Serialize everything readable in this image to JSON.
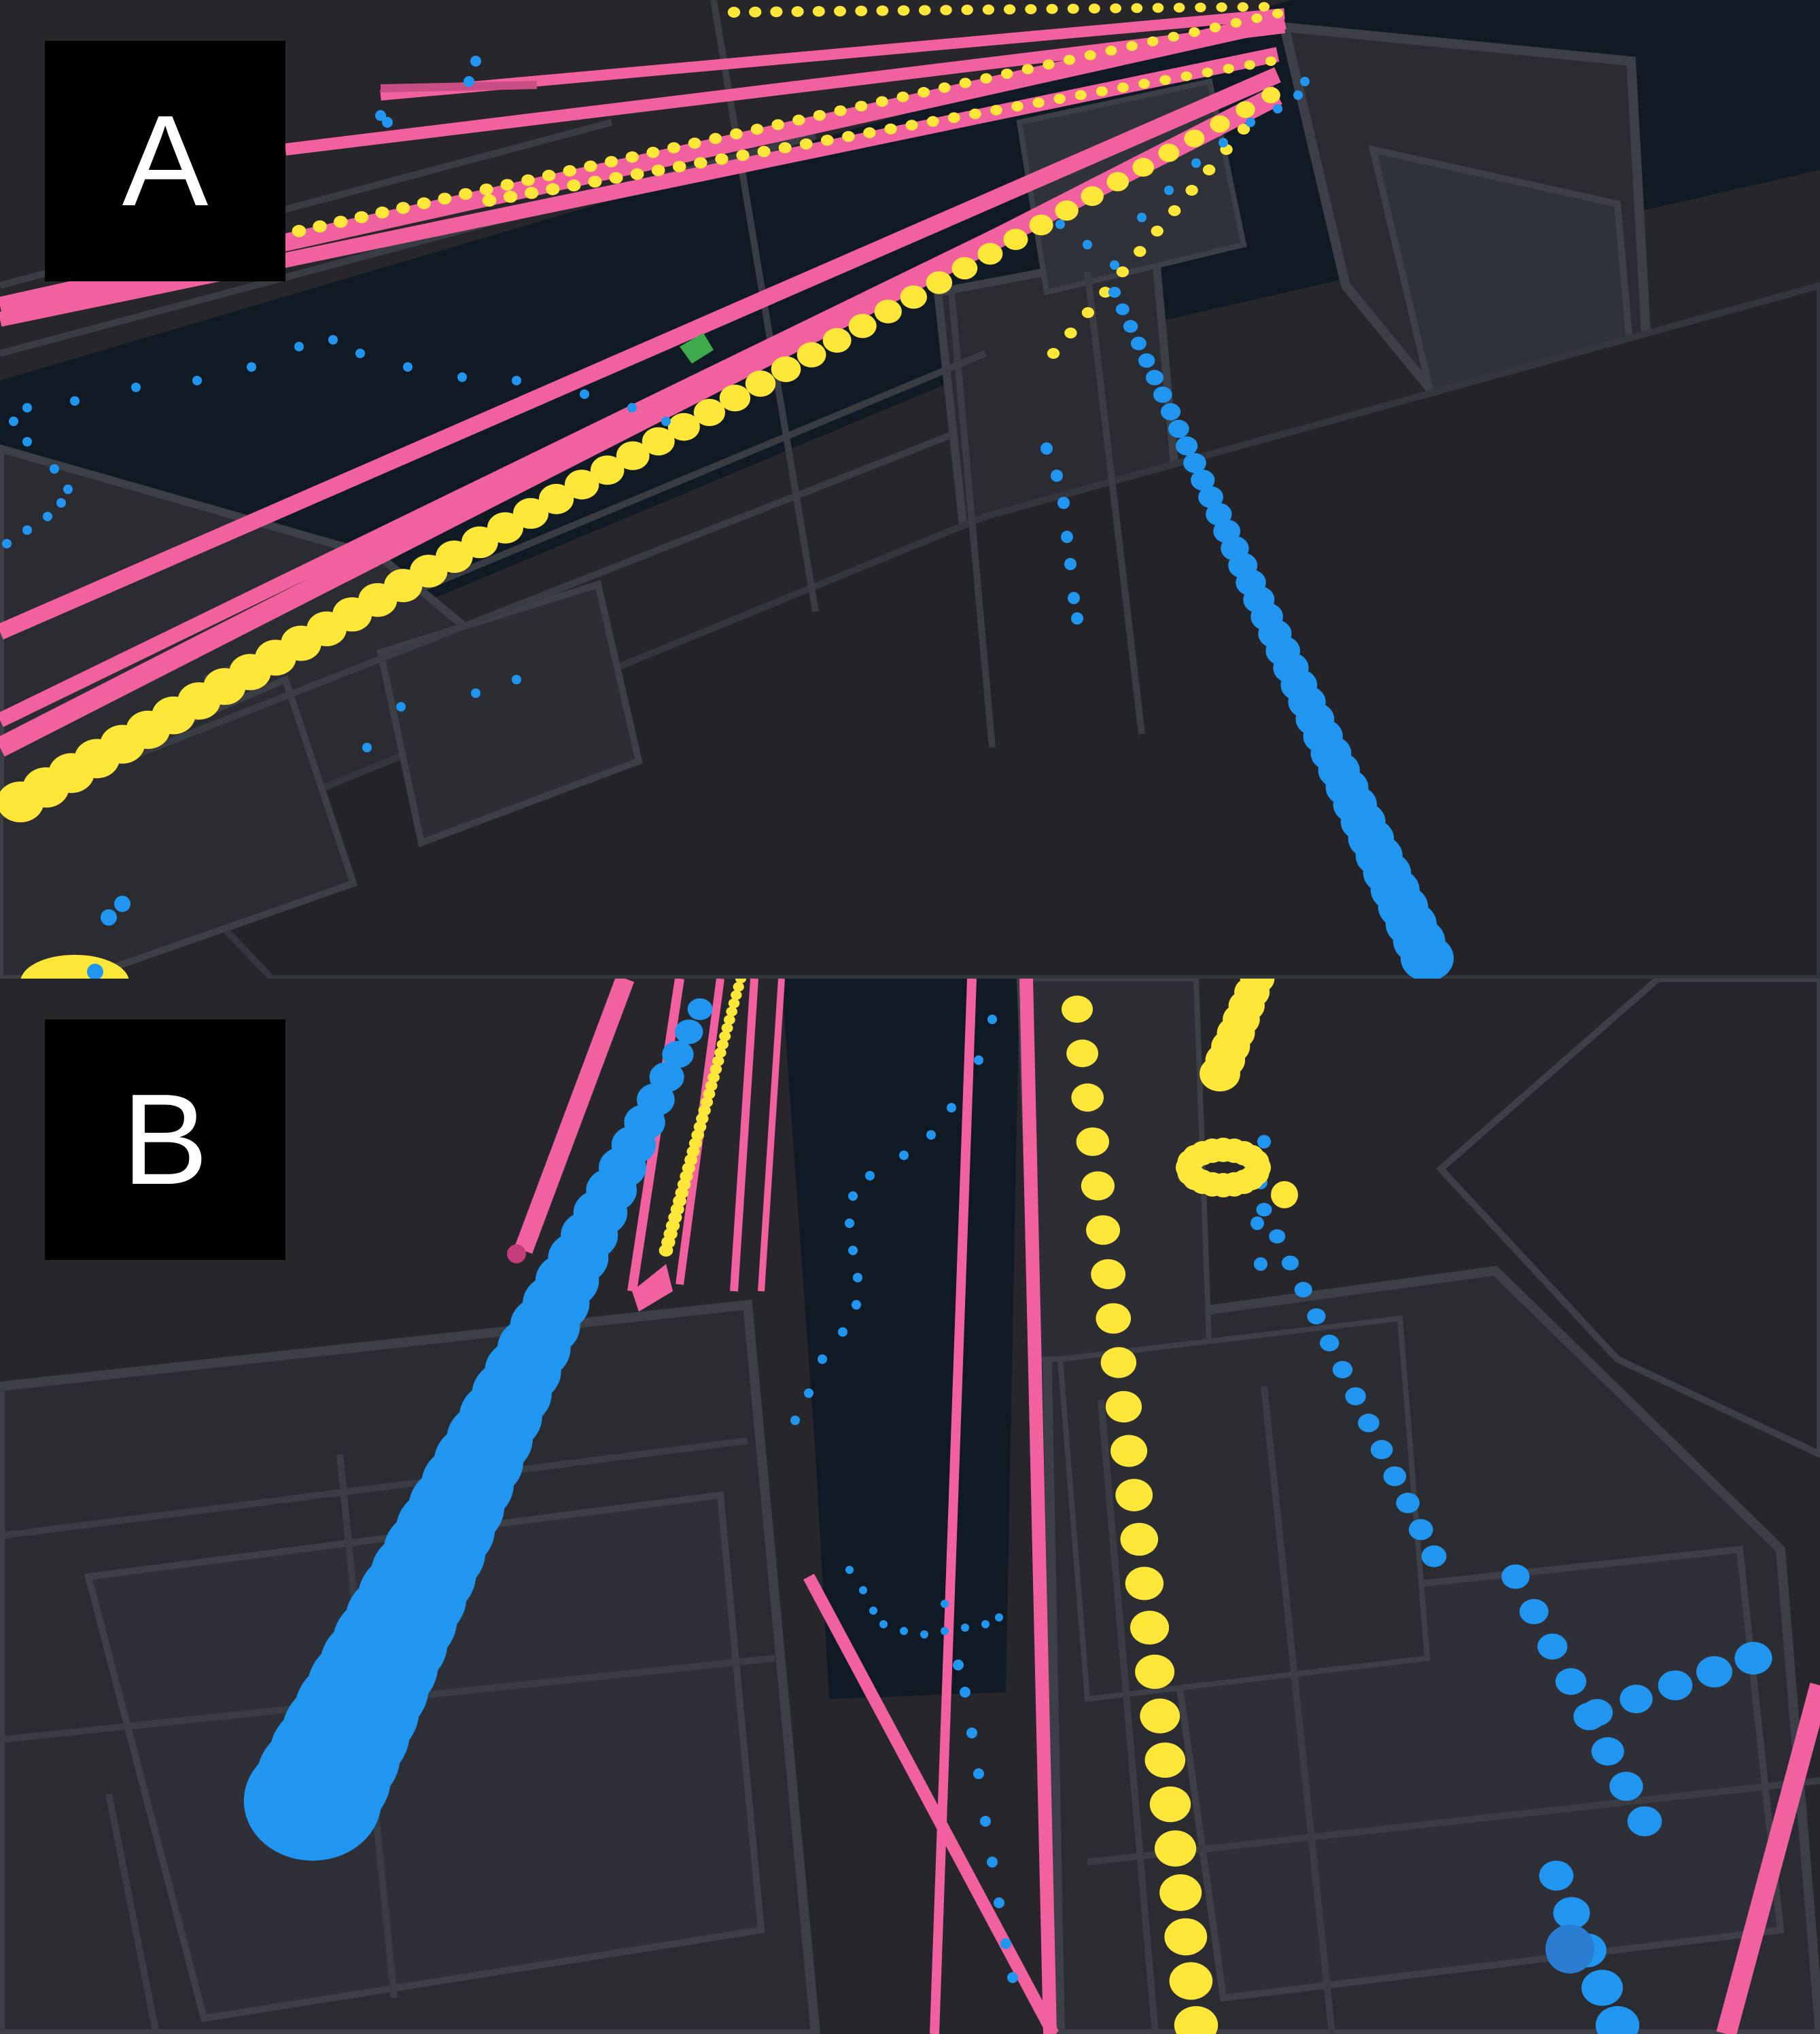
{
  "panels": [
    {
      "label": "A"
    },
    {
      "label": "B"
    }
  ],
  "colors": {
    "background": "#26262b",
    "building_face": "#2b2c32",
    "building_edge": "#3d3f47",
    "sky_gap": "#0f1a24",
    "pink_path": "#f1609f",
    "yellow_dots": "#ffe73a",
    "blue_dots": "#2196f0",
    "green_marker": "#3faa4c"
  },
  "icons": [
    "panel-label-a",
    "panel-label-b"
  ]
}
